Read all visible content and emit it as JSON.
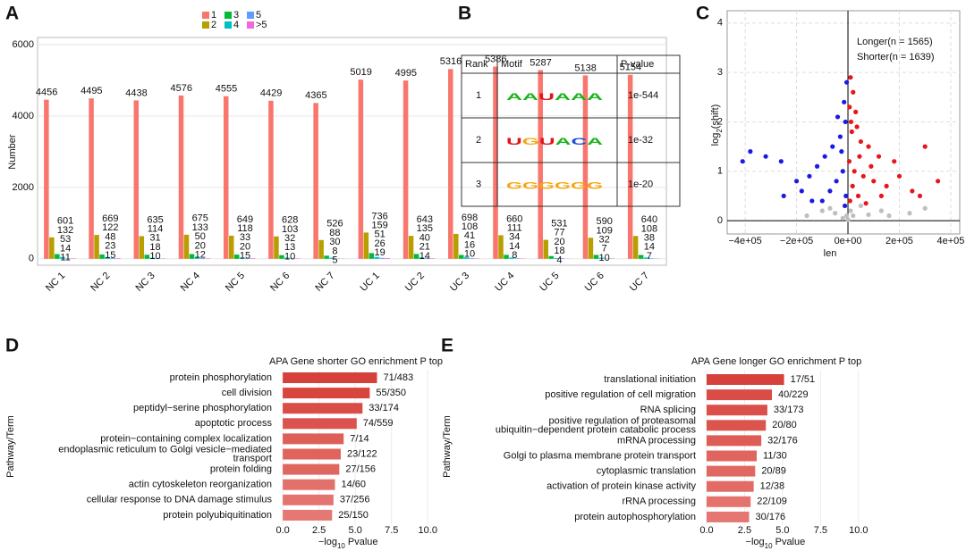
{
  "chart_data": [
    {
      "type": "bar",
      "panel": "A",
      "ylabel": "Number",
      "categories": [
        "NC 1",
        "NC 2",
        "NC 3",
        "NC 4",
        "NC 5",
        "NC 6",
        "NC 7",
        "UC 1",
        "UC 2",
        "UC 3",
        "UC 4",
        "UC 5",
        "UC 6",
        "UC 7"
      ],
      "series": [
        {
          "name": "1",
          "color": "#F8766D",
          "values": [
            4456,
            4495,
            4438,
            4576,
            4555,
            4429,
            4365,
            5019,
            4995,
            5316,
            5386,
            5287,
            5138,
            5154
          ]
        },
        {
          "name": "2",
          "color": "#B79F00",
          "values": [
            601,
            669,
            635,
            675,
            649,
            628,
            526,
            736,
            643,
            698,
            660,
            531,
            590,
            640
          ]
        },
        {
          "name": "3",
          "color": "#00BA38",
          "values": [
            132,
            122,
            114,
            133,
            118,
            103,
            88,
            159,
            135,
            108,
            111,
            77,
            109,
            108
          ]
        },
        {
          "name": "4",
          "color": "#00BFC4",
          "values": [
            53,
            48,
            31,
            50,
            33,
            32,
            30,
            51,
            40,
            41,
            34,
            20,
            32,
            38
          ]
        },
        {
          "name": "5",
          "color": "#619CFF",
          "values": [
            14,
            23,
            18,
            20,
            20,
            13,
            8,
            26,
            21,
            16,
            14,
            18,
            7,
            14
          ]
        },
        {
          "name": ">5",
          "color": "#F564E3",
          "values": [
            11,
            15,
            10,
            12,
            15,
            10,
            5,
            19,
            14,
            10,
            8,
            4,
            10,
            7
          ]
        }
      ],
      "ylim": [
        -180,
        6200
      ],
      "yticks": [
        0,
        2000,
        4000,
        6000
      ],
      "grid": true,
      "legend": "top"
    },
    {
      "type": "scatter",
      "panel": "C",
      "xlabel": "len",
      "ylabel": [
        "log",
        "2",
        "(shift)"
      ],
      "series": [
        {
          "name": "Longer(n = 1565)",
          "color": "#E8161B",
          "x": [
            10000,
            20000,
            30000,
            15000,
            50000,
            80000,
            120000,
            5000,
            25000,
            60000,
            100000,
            150000,
            200000,
            300000,
            350000,
            280000,
            40000,
            8000,
            70000,
            12000,
            35000,
            90000,
            180000,
            18000,
            45000,
            6000,
            130000,
            250000
          ],
          "values": [
            2.9,
            2.6,
            2.2,
            1.8,
            1.6,
            1.5,
            1.3,
            1.2,
            1.0,
            0.9,
            0.8,
            0.7,
            0.9,
            1.5,
            0.8,
            0.5,
            0.5,
            0.4,
            0.35,
            2.0,
            1.9,
            1.1,
            1.2,
            0.7,
            1.3,
            2.3,
            0.5,
            0.6
          ]
        },
        {
          "name": "Shorter(n = 1639)",
          "color": "#1A1AE6",
          "x": [
            -5000,
            -15000,
            -10000,
            -30000,
            -60000,
            -90000,
            -120000,
            -150000,
            -200000,
            -250000,
            -320000,
            -380000,
            -410000,
            -260000,
            -20000,
            -45000,
            -70000,
            -8000,
            -100000,
            -180000,
            -25000,
            -12000,
            -40000,
            -140000
          ],
          "values": [
            2.8,
            2.4,
            2.0,
            1.7,
            1.5,
            1.3,
            1.1,
            0.9,
            0.8,
            0.5,
            1.3,
            1.4,
            1.2,
            1.2,
            1.0,
            0.8,
            0.6,
            0.5,
            0.4,
            0.6,
            1.4,
            0.3,
            2.1,
            0.4
          ]
        },
        {
          "color": "#BEBEBE",
          "x": [
            -50000,
            20000,
            -100000,
            80000,
            130000,
            -20000,
            0,
            160000,
            300000,
            -160000,
            240000,
            50000,
            -70000,
            10000,
            -5000
          ],
          "values": [
            0.15,
            0.1,
            0.2,
            0.12,
            0.2,
            0.05,
            0.02,
            0.1,
            0.25,
            0.1,
            0.15,
            0.3,
            0.25,
            0.2,
            0.1
          ]
        }
      ],
      "xlim": [
        -470000,
        435000
      ],
      "ylim": [
        -0.27,
        4.25
      ],
      "xticks": [
        {
          "value": -400000,
          "label": "−4e+05"
        },
        {
          "value": -200000,
          "label": "−2e+05"
        },
        {
          "value": 0,
          "label": "0e+00"
        },
        {
          "value": 200000,
          "label": "2e+05"
        },
        {
          "value": 400000,
          "label": "4e+05"
        }
      ],
      "yticks": [
        0,
        1,
        2,
        3,
        4
      ],
      "grid": true,
      "legend": "top-right"
    },
    {
      "type": "barh",
      "panel": "D",
      "title": "APA Gene shorter GO enrichment P top",
      "ylabel": "Pathway/Term",
      "xlabel": [
        "−log",
        "10",
        " Pvalue"
      ],
      "categories": [
        "protein phosphorylation",
        "cell division",
        "peptidyl−serine phosphorylation",
        "apoptotic process",
        "protein−containing complex localization",
        "endoplasmic reticulum to Golgi vesicle−mediated\ntransport",
        "protein folding",
        "actin cytoskeleton reorganization",
        "cellular response to DNA damage stimulus",
        "protein polyubiquitination"
      ],
      "values": [
        6.5,
        6.0,
        5.5,
        5.1,
        4.2,
        4.0,
        3.9,
        3.6,
        3.5,
        3.4
      ],
      "counts": [
        "71/483",
        "55/350",
        "33/174",
        "74/559",
        "7/14",
        "23/122",
        "27/156",
        "14/60",
        "37/256",
        "25/150"
      ],
      "colors": [
        "#d7413c",
        "#d8453f",
        "#da4d47",
        "#db534d",
        "#de5f58",
        "#df645d",
        "#e06660",
        "#e3716b",
        "#e4746f",
        "#e57873"
      ],
      "xlim": [
        -0.5,
        10.6
      ],
      "xticks": [
        {
          "value": 0,
          "label": "0.0"
        },
        {
          "value": 2.5,
          "label": "2.5"
        },
        {
          "value": 5,
          "label": "5.0"
        },
        {
          "value": 7.5,
          "label": "7.5"
        },
        {
          "value": 10,
          "label": "10.0"
        }
      ],
      "grid": true
    },
    {
      "type": "barh",
      "panel": "E",
      "title": "APA Gene longer GO enrichment P top",
      "ylabel": "Pathway/Term",
      "xlabel": [
        "−log",
        "10",
        " Pvalue"
      ],
      "categories": [
        "translational initiation",
        "positive regulation of cell migration",
        "RNA splicing",
        "positive regulation of proteasomal\nubiquitin−dependent protein catabolic process",
        "mRNA processing",
        "Golgi to plasma membrane protein transport",
        "cytoplasmic translation",
        "activation of protein kinase activity",
        "rRNA processing",
        "protein autophosphorylation"
      ],
      "values": [
        5.1,
        4.3,
        4.0,
        3.9,
        3.6,
        3.3,
        3.2,
        3.1,
        2.9,
        2.8
      ],
      "counts": [
        "17/51",
        "40/229",
        "33/173",
        "20/80",
        "32/176",
        "11/30",
        "20/89",
        "12/38",
        "22/109",
        "30/176"
      ],
      "colors": [
        "#d7413c",
        "#da4c46",
        "#db504a",
        "#dc544e",
        "#de5c56",
        "#e0655f",
        "#e16862",
        "#e26b65",
        "#e4736e",
        "#e57671"
      ],
      "xlim": [
        -0.47,
        10.6
      ],
      "xticks": [
        {
          "value": 0,
          "label": "0.0"
        },
        {
          "value": 2.5,
          "label": "2.5"
        },
        {
          "value": 5,
          "label": "5.0"
        },
        {
          "value": 7.5,
          "label": "7.5"
        },
        {
          "value": 10,
          "label": "10.0"
        }
      ],
      "grid": true
    }
  ],
  "motif_table": {
    "panel": "B",
    "header": [
      "Rank",
      "Motif",
      "P-value"
    ],
    "rows": [
      [
        "1",
        "AAUAAA",
        "1e-544"
      ],
      [
        "2",
        "UGUACA",
        "1e-32"
      ],
      [
        "3",
        "GGGGGG",
        "1e-20"
      ]
    ]
  }
}
